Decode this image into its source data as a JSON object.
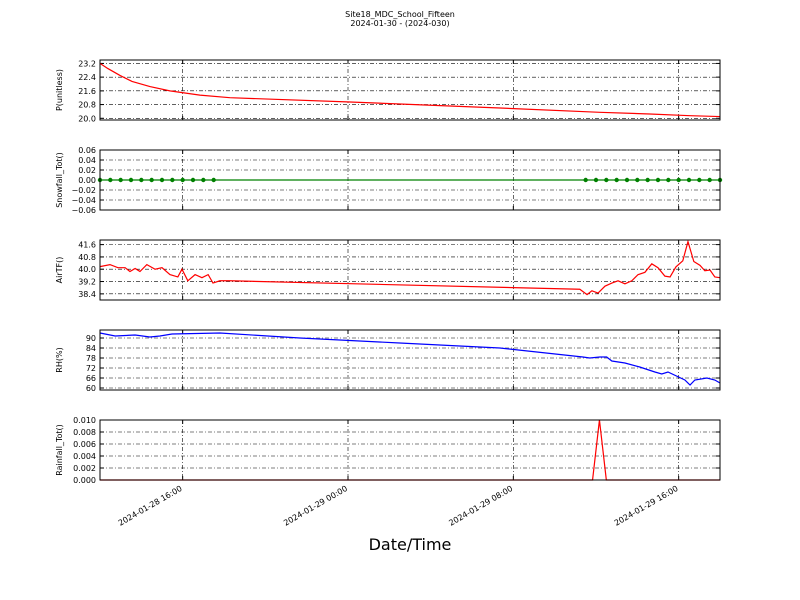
{
  "figure": {
    "title": "Site18_MDC_School_Fifteen",
    "subtitle": "2024-01-30 - (2024-030)",
    "xlabel": "Date/Time",
    "xlim": [
      "2024-01-28 12:00",
      "2024-01-29 18:00"
    ],
    "xticks": [
      "2024-01-28 16:00",
      "2024-01-29 00:00",
      "2024-01-29 08:00",
      "2024-01-29 16:00"
    ]
  },
  "chart_data": [
    {
      "type": "line",
      "ylabel": "P(unitless)",
      "color": "#ff0000",
      "grid": true,
      "ylim": [
        19.9,
        23.4
      ],
      "yticks": [
        {
          "value": 20.0,
          "label": "20.0"
        },
        20.8,
        21.6,
        22.4,
        23.2
      ],
      "x": [
        "2024-01-28 12:00",
        "2024-01-28 12:23",
        "2024-01-28 12:58",
        "2024-01-28 13:33",
        "2024-01-28 14:25",
        "2024-01-28 15:23",
        "2024-01-28 16:50",
        "2024-01-28 18:17",
        "2024-01-29 00:06",
        "2024-01-29 07:21",
        "2024-01-29 12:11",
        "2024-01-29 14:36",
        "2024-01-29 16:33",
        "2024-01-29 18:00"
      ],
      "values": [
        23.2,
        22.9,
        22.5,
        22.15,
        21.85,
        21.6,
        21.35,
        21.2,
        20.95,
        20.6,
        20.35,
        20.25,
        20.15,
        20.1
      ]
    },
    {
      "type": "line",
      "ylabel": "Snowfall_Tot()",
      "color": "#008000",
      "marker": true,
      "grid": true,
      "ylim": [
        -0.06,
        0.06
      ],
      "yticks": [
        {
          "value": -0.06,
          "label": "−0.06"
        },
        {
          "value": -0.04,
          "label": "−0.04"
        },
        {
          "value": -0.02,
          "label": "−0.02"
        },
        {
          "value": 0,
          "label": "0.00"
        },
        {
          "value": 0.02,
          "label": "0.02"
        },
        {
          "value": 0.04,
          "label": "0.04"
        },
        {
          "value": 0.06,
          "label": "0.06"
        }
      ],
      "x": [
        "2024-01-28 12:00",
        "2024-01-28 12:30",
        "2024-01-28 13:00",
        "2024-01-28 13:30",
        "2024-01-28 14:00",
        "2024-01-28 14:30",
        "2024-01-28 15:00",
        "2024-01-28 15:30",
        "2024-01-28 16:00",
        "2024-01-28 16:30",
        "2024-01-28 17:00",
        "2024-01-28 17:30",
        "2024-01-29 11:30",
        "2024-01-29 12:00",
        "2024-01-29 12:30",
        "2024-01-29 13:00",
        "2024-01-29 13:30",
        "2024-01-29 14:00",
        "2024-01-29 14:30",
        "2024-01-29 15:00",
        "2024-01-29 15:30",
        "2024-01-29 16:00",
        "2024-01-29 16:30",
        "2024-01-29 17:00",
        "2024-01-29 17:30",
        "2024-01-29 18:00"
      ],
      "values": [
        0,
        0,
        0,
        0,
        0,
        0,
        0,
        0,
        0,
        0,
        0,
        0,
        0,
        0,
        0,
        0,
        0,
        0,
        0,
        0,
        0,
        0,
        0,
        0,
        0,
        0
      ]
    },
    {
      "type": "line",
      "ylabel": "AirTF()",
      "color": "#ff0000",
      "grid": true,
      "ylim": [
        38.0,
        41.9
      ],
      "yticks": [
        38.4,
        39.2,
        {
          "value": 40.0,
          "label": "40.0"
        },
        40.8,
        41.6
      ],
      "x": [
        "2024-01-28 12:00",
        "2024-01-28 12:29",
        "2024-01-28 12:52",
        "2024-01-28 13:13",
        "2024-01-28 13:27",
        "2024-01-28 13:42",
        "2024-01-28 13:56",
        "2024-01-28 14:16",
        "2024-01-28 14:40",
        "2024-01-28 15:00",
        "2024-01-28 15:23",
        "2024-01-28 15:46",
        "2024-01-28 15:58",
        "2024-01-28 16:15",
        "2024-01-28 16:36",
        "2024-01-28 16:56",
        "2024-01-28 17:14",
        "2024-01-28 17:28",
        "2024-01-28 17:48",
        "2024-01-28 18:17",
        "2024-01-29 11:13",
        "2024-01-29 11:34",
        "2024-01-29 11:48",
        "2024-01-29 12:06",
        "2024-01-29 12:26",
        "2024-01-29 12:46",
        "2024-01-29 13:04",
        "2024-01-29 13:24",
        "2024-01-29 13:44",
        "2024-01-29 14:02",
        "2024-01-29 14:22",
        "2024-01-29 14:42",
        "2024-01-29 15:00",
        "2024-01-29 15:20",
        "2024-01-29 15:35",
        "2024-01-29 15:52",
        "2024-01-29 16:12",
        "2024-01-29 16:27",
        "2024-01-29 16:44",
        "2024-01-29 17:02",
        "2024-01-29 17:16",
        "2024-01-29 17:31",
        "2024-01-29 17:45",
        "2024-01-29 18:00"
      ],
      "values": [
        40.17,
        40.3,
        40.1,
        40.1,
        39.85,
        40.05,
        39.85,
        40.3,
        40.0,
        40.1,
        39.65,
        39.5,
        40.0,
        39.25,
        39.65,
        39.45,
        39.65,
        39.1,
        39.25,
        39.25,
        38.7,
        38.35,
        38.6,
        38.45,
        38.9,
        39.1,
        39.25,
        39.05,
        39.25,
        39.65,
        39.8,
        40.35,
        40.1,
        39.55,
        39.5,
        40.15,
        40.55,
        41.8,
        40.5,
        40.25,
        39.9,
        39.95,
        39.5,
        39.45
      ]
    },
    {
      "type": "line",
      "ylabel": "RH(%)",
      "color": "#0000ff",
      "grid": true,
      "ylim": [
        58.8,
        94.8
      ],
      "yticks": [
        60,
        66,
        72,
        78,
        84,
        90
      ],
      "x": [
        "2024-01-28 12:00",
        "2024-01-28 12:44",
        "2024-01-28 13:42",
        "2024-01-28 14:25",
        "2024-01-28 14:54",
        "2024-01-28 15:29",
        "2024-01-28 17:48",
        "2024-01-28 21:40",
        "2024-01-29 02:30",
        "2024-01-29 07:21",
        "2024-01-29 11:22",
        "2024-01-29 11:42",
        "2024-01-29 12:11",
        "2024-01-29 12:31",
        "2024-01-29 12:46",
        "2024-01-29 13:24",
        "2024-01-29 14:07",
        "2024-01-29 14:51",
        "2024-01-29 15:11",
        "2024-01-29 15:29",
        "2024-01-29 16:18",
        "2024-01-29 16:33",
        "2024-01-29 16:47",
        "2024-01-29 17:22",
        "2024-01-29 17:45",
        "2024-01-29 18:00"
      ],
      "values": [
        93,
        91.2,
        91.8,
        90.6,
        91.2,
        92.4,
        93,
        90,
        87,
        84,
        78.6,
        78,
        78.6,
        78.6,
        76.2,
        75,
        72.6,
        69.6,
        68.4,
        69.6,
        64.8,
        61.8,
        64.8,
        66,
        64.8,
        63
      ]
    },
    {
      "type": "line",
      "ylabel": "Rainfall_Tot()",
      "color": "#ff0000",
      "grid": true,
      "ylim": [
        0,
        0.01
      ],
      "yticks": [
        {
          "value": 0,
          "label": "0.000"
        },
        {
          "value": 0.002,
          "label": "0.002"
        },
        {
          "value": 0.004,
          "label": "0.004"
        },
        {
          "value": 0.006,
          "label": "0.006"
        },
        {
          "value": 0.008,
          "label": "0.008"
        },
        {
          "value": 0.01,
          "label": "0.010"
        }
      ],
      "x": [
        "2024-01-28 12:00",
        "2024-01-28 17:50",
        "2024-01-29 11:50",
        "2024-01-29 12:10",
        "2024-01-29 12:30",
        "2024-01-29 18:00"
      ],
      "values": [
        0,
        0,
        0,
        0.01,
        0,
        0
      ]
    }
  ]
}
